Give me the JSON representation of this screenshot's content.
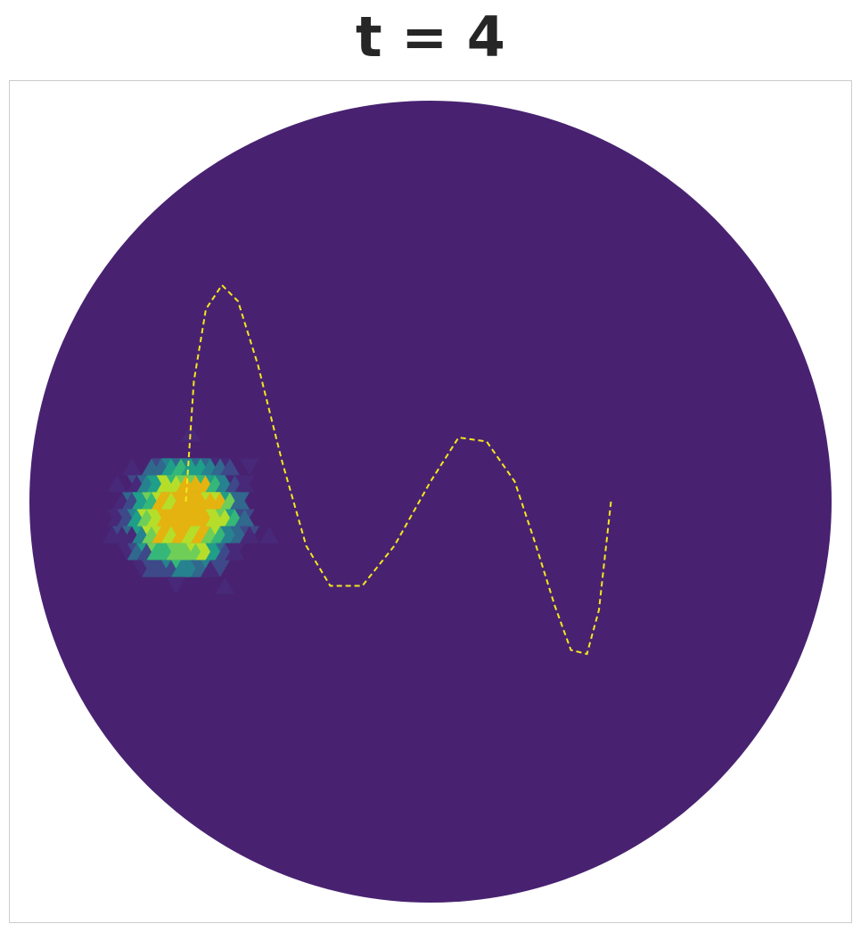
{
  "title": "t = 4",
  "colors": {
    "background_field": "#482271",
    "path": "#f5e61e",
    "viridis": [
      "#440154",
      "#482878",
      "#3e4989",
      "#31688e",
      "#26828e",
      "#1f9e89",
      "#35b779",
      "#6ece58",
      "#b5de2b",
      "#e4b310"
    ]
  },
  "chart_data": {
    "type": "heatmap",
    "domain": "disk",
    "grid": false,
    "axes_visible": false,
    "colormap": "viridis",
    "blob": {
      "center": [
        -0.61,
        -0.04
      ],
      "radius": 0.16
    },
    "path": {
      "style": "dashed",
      "points": [
        [
          -0.61,
          0.0
        ],
        [
          -0.59,
          0.3
        ],
        [
          -0.56,
          0.48
        ],
        [
          -0.52,
          0.54
        ],
        [
          -0.48,
          0.5
        ],
        [
          -0.43,
          0.34
        ],
        [
          -0.37,
          0.1
        ],
        [
          -0.31,
          -0.11
        ],
        [
          -0.25,
          -0.21
        ],
        [
          -0.17,
          -0.21
        ],
        [
          -0.09,
          -0.11
        ],
        [
          0.0,
          0.05
        ],
        [
          0.07,
          0.16
        ],
        [
          0.14,
          0.15
        ],
        [
          0.21,
          0.05
        ],
        [
          0.26,
          -0.1
        ],
        [
          0.31,
          -0.26
        ],
        [
          0.35,
          -0.37
        ],
        [
          0.39,
          -0.38
        ],
        [
          0.42,
          -0.27
        ],
        [
          0.45,
          0.0
        ]
      ]
    }
  }
}
